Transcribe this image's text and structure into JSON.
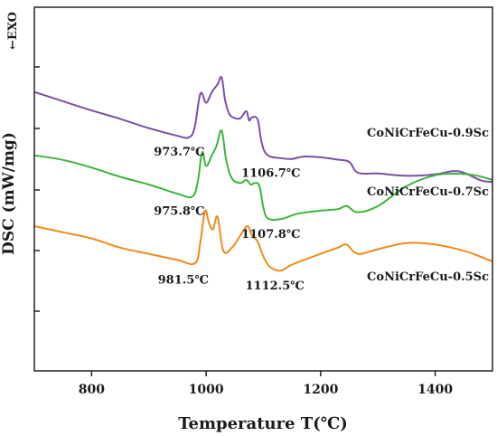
{
  "chart_data": {
    "type": "line",
    "title": "",
    "xlabel": "Temperature T(℃)",
    "ylabel": "DSC (mW/mg)",
    "exo_label": "←EXO",
    "xlim": [
      700,
      1500
    ],
    "xticks": [
      800,
      1000,
      1200,
      1400
    ],
    "grid": false,
    "legend": "none",
    "series": [
      {
        "name": "CoNiCrFeCu-0.9Sc",
        "color": "#7b4fa6",
        "x": [
          700,
          750,
          800,
          850,
          900,
          950,
          970,
          980,
          990,
          1000,
          1010,
          1020,
          1027,
          1033,
          1040,
          1050,
          1060,
          1070,
          1075,
          1080,
          1090,
          1097,
          1107,
          1130,
          1150,
          1170,
          1200,
          1230,
          1250,
          1265,
          1300,
          1350,
          1400,
          1430,
          1450,
          1480,
          1500
        ],
        "y": [
          4.9,
          4.3,
          3.7,
          3.15,
          2.55,
          2.05,
          1.95,
          2.6,
          4.8,
          4.2,
          4.9,
          5.4,
          5.85,
          4.4,
          3.5,
          3.2,
          3.2,
          3.65,
          3.05,
          3.25,
          3.1,
          1.6,
          0.8,
          0.6,
          0.55,
          0.7,
          0.65,
          0.5,
          0.35,
          -0.35,
          -0.4,
          -0.55,
          -0.45,
          -0.25,
          -0.35,
          -0.85,
          -0.95
        ]
      },
      {
        "name": "CoNiCrFeCu-0.7Sc",
        "color": "#3cb43c",
        "x": [
          700,
          750,
          800,
          850,
          900,
          950,
          975,
          985,
          993,
          1000,
          1010,
          1018,
          1027,
          1035,
          1045,
          1060,
          1070,
          1078,
          1085,
          1093,
          1100,
          1108,
          1130,
          1160,
          1200,
          1230,
          1245,
          1265,
          1300,
          1350,
          1400,
          1440,
          1470,
          1500
        ],
        "y": [
          4.9,
          4.6,
          4.1,
          3.5,
          3.0,
          2.4,
          2.2,
          3.1,
          5.1,
          4.2,
          4.9,
          5.5,
          6.5,
          4.6,
          3.4,
          3.1,
          3.3,
          3.0,
          3.1,
          2.9,
          1.5,
          0.8,
          0.75,
          1.1,
          1.3,
          1.4,
          1.6,
          1.2,
          1.6,
          2.9,
          3.6,
          3.7,
          3.6,
          3.3
        ]
      },
      {
        "name": "CoNiCrFeCu-0.5Sc",
        "color": "#f08a1c",
        "x": [
          700,
          750,
          800,
          850,
          900,
          950,
          981,
          990,
          998,
          1005,
          1012,
          1020,
          1030,
          1045,
          1060,
          1072,
          1080,
          1090,
          1098,
          1110,
          1130,
          1150,
          1200,
          1230,
          1245,
          1265,
          1300,
          1350,
          1400,
          1450,
          1480,
          1500
        ],
        "y": [
          5.0,
          4.6,
          4.2,
          3.6,
          3.2,
          2.8,
          2.6,
          4.0,
          6.0,
          5.2,
          4.8,
          5.6,
          3.4,
          3.6,
          4.4,
          5.0,
          4.4,
          4.0,
          3.2,
          2.4,
          2.1,
          2.5,
          3.2,
          3.6,
          3.8,
          3.2,
          3.5,
          3.9,
          3.8,
          3.4,
          3.0,
          2.7
        ]
      }
    ],
    "annotations": [
      {
        "text": "973.7℃",
        "x": 953,
        "series": 0,
        "at_y": 1.6
      },
      {
        "text": "1106.7℃",
        "x": 1113,
        "series": 0,
        "at_y": 0.2
      },
      {
        "text": "975.8℃",
        "x": 953,
        "series": 1,
        "at_y": 1.85
      },
      {
        "text": "1107.8℃",
        "x": 1113,
        "series": 1,
        "at_y": 0.35
      },
      {
        "text": "981.5℃",
        "x": 960,
        "series": 2,
        "at_y": 2.1
      },
      {
        "text": "1112.5℃",
        "x": 1120,
        "series": 2,
        "at_y": 1.7
      }
    ]
  }
}
